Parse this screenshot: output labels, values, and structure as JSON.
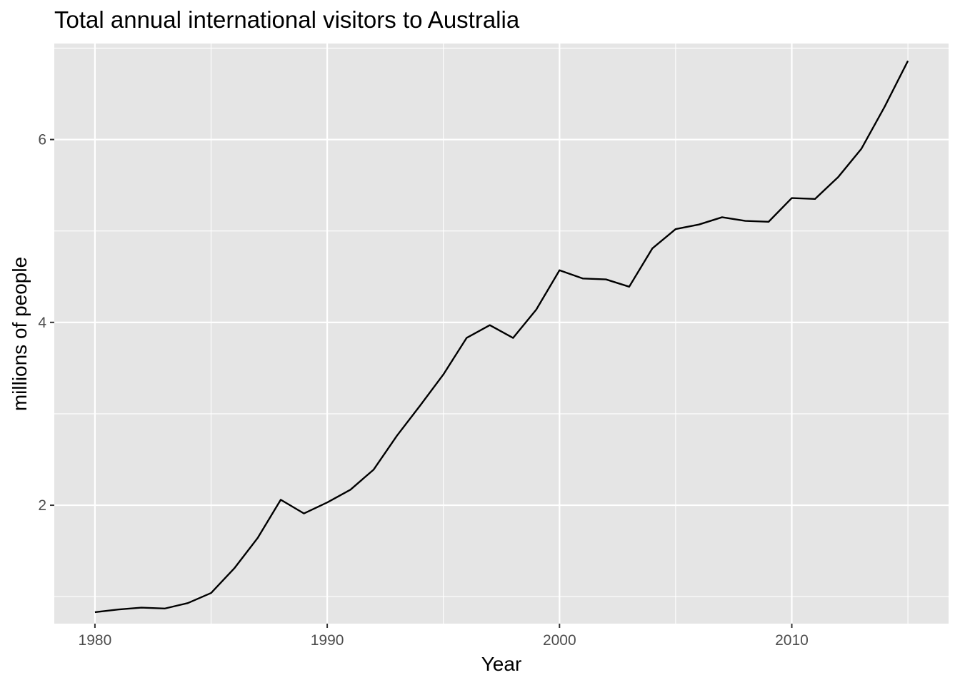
{
  "chart_data": {
    "type": "line",
    "title": "Total annual international visitors to Australia",
    "xlabel": "Year",
    "ylabel": "millions of people",
    "xlim": [
      1978.25,
      2016.75
    ],
    "ylim": [
      0.705,
      7.05
    ],
    "x_ticks": [
      1980,
      1990,
      2000,
      2010
    ],
    "x_tick_labels": [
      "1980",
      "1990",
      "2000",
      "2010"
    ],
    "x_minor_ticks": [
      1985,
      1995,
      2005,
      2015
    ],
    "y_ticks": [
      2,
      4,
      6
    ],
    "y_tick_labels": [
      "2",
      "4",
      "6"
    ],
    "y_minor_ticks": [
      1,
      3,
      5,
      7
    ],
    "grid": true,
    "legend": "none",
    "colors": {
      "panel_background": "#e5e5e5",
      "grid": "#ffffff",
      "line": "#000000",
      "tick_mark": "#333333"
    },
    "series": [
      {
        "x": [
          1980,
          1981,
          1982,
          1983,
          1984,
          1985,
          1986,
          1987,
          1988,
          1989,
          1990,
          1991,
          1992,
          1993,
          1994,
          1995,
          1996,
          1997,
          1998,
          1999,
          2000,
          2001,
          2002,
          2003,
          2004,
          2005,
          2006,
          2007,
          2008,
          2009,
          2010,
          2011,
          2012,
          2013,
          2014,
          2015
        ],
        "values": [
          0.83,
          0.86,
          0.88,
          0.87,
          0.93,
          1.04,
          1.31,
          1.64,
          2.06,
          1.91,
          2.03,
          2.17,
          2.39,
          2.76,
          3.09,
          3.43,
          3.83,
          3.97,
          3.83,
          4.14,
          4.57,
          4.48,
          4.47,
          4.39,
          4.81,
          5.02,
          5.07,
          5.15,
          5.11,
          5.1,
          5.36,
          5.35,
          5.59,
          5.9,
          6.36,
          6.86
        ]
      }
    ]
  }
}
